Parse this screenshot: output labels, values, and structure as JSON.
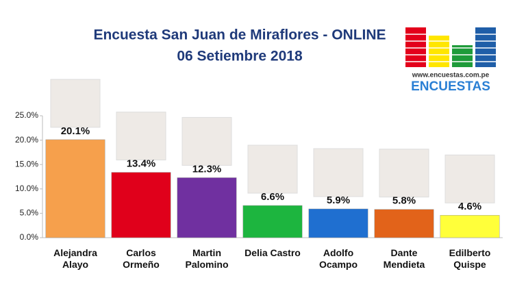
{
  "chart_data": {
    "type": "bar",
    "title": "Encuesta San Juan de Miraflores - ONLINE",
    "subtitle": "06 Setiembre 2018",
    "logo_url": "www.encuestas.com.pe",
    "logo_name": "ENCUESTAS",
    "categories": [
      "Alejandra Alayo",
      "Carlos Ormeño",
      "Martin Palomino",
      "Delia Castro",
      "Adolfo Ocampo",
      "Dante Mendieta",
      "Edilberto Quispe"
    ],
    "values": [
      20.1,
      13.4,
      12.3,
      6.6,
      5.9,
      5.8,
      4.6
    ],
    "value_labels": [
      "20.1%",
      "13.4%",
      "12.3%",
      "6.6%",
      "5.9%",
      "5.8%",
      "4.6%"
    ],
    "colors": [
      "#f6a04c",
      "#e0001b",
      "#7030a0",
      "#1db53f",
      "#1f6fd0",
      "#e2631a",
      "#ffff3a"
    ],
    "ylim": [
      0,
      25
    ],
    "yticks": [
      {
        "value": 0,
        "label": "0.0%"
      },
      {
        "value": 5,
        "label": "5.0%"
      },
      {
        "value": 10,
        "label": "10.0%"
      },
      {
        "value": 15,
        "label": "15.0%"
      },
      {
        "value": 20,
        "label": "20.0%"
      },
      {
        "value": 25,
        "label": "25.0%"
      }
    ],
    "grid": false
  }
}
